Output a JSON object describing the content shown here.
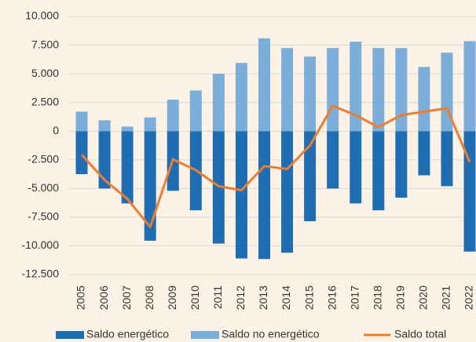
{
  "chart_data": {
    "type": "bar-line",
    "categories": [
      "2005",
      "2006",
      "2007",
      "2008",
      "2009",
      "2010",
      "2011",
      "2012",
      "2013",
      "2014",
      "2015",
      "2016",
      "2017",
      "2018",
      "2019",
      "2020",
      "2021",
      "2022"
    ],
    "series": [
      {
        "name": "Saldo energético",
        "type": "bar",
        "color": "#1f6db3",
        "values": [
          -3750,
          -5000,
          -6300,
          -9550,
          -5200,
          -6900,
          -9800,
          -11100,
          -11150,
          -10600,
          -7850,
          -5000,
          -6300,
          -6900,
          -5800,
          -3850,
          -4800,
          -10500
        ]
      },
      {
        "name": "Saldo no energético",
        "type": "bar",
        "color": "#7bafd9",
        "values": [
          1700,
          950,
          400,
          1200,
          2750,
          3550,
          5000,
          5950,
          8100,
          7250,
          6500,
          7250,
          7800,
          7250,
          7250,
          5600,
          6850,
          7850
        ]
      },
      {
        "name": "Saldo total",
        "type": "line",
        "color": "#ee7d31",
        "values": [
          -2050,
          -4250,
          -5900,
          -8350,
          -2450,
          -3400,
          -4800,
          -5150,
          -3050,
          -3300,
          -1250,
          2200,
          1400,
          350,
          1400,
          1700,
          2000,
          -2700
        ]
      }
    ],
    "ylim": [
      -12500,
      10000
    ],
    "yticks": [
      {
        "value": 10000,
        "label": "10.000"
      },
      {
        "value": 7500,
        "label": "7.500"
      },
      {
        "value": 5000,
        "label": "5.000"
      },
      {
        "value": 2500,
        "label": "2.500"
      },
      0,
      {
        "value": -2500,
        "label": "-2.500"
      },
      {
        "value": -5000,
        "label": "-5.000"
      },
      {
        "value": -7500,
        "label": "-7.500"
      },
      {
        "value": -10000,
        "label": "-10.000"
      },
      {
        "value": -12500,
        "label": "-12.500"
      }
    ],
    "grid": true,
    "legend": "bottom"
  }
}
